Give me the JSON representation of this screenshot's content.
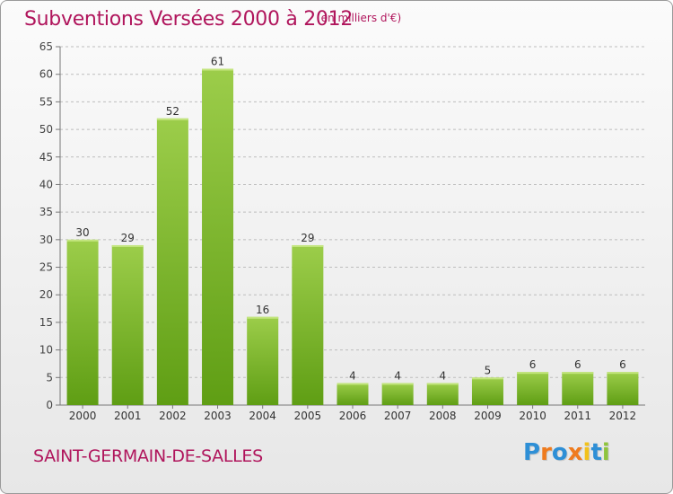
{
  "header": {
    "title": "Subventions Versées 2000 à 2012",
    "unit_note": "(en milliers d'€)"
  },
  "footer": {
    "commune": "SAINT-GERMAIN-DE-SALLES",
    "logo_text": "Proxiti",
    "logo_colors": [
      "#2e8fd6",
      "#ef7b1e",
      "#2e8fd6",
      "#ef7b1e",
      "#f2c21b",
      "#2e8fd6",
      "#8fc43d"
    ]
  },
  "colors": {
    "title": "#b0155c",
    "bar_top": "#9ccd4a",
    "bar_bottom": "#5f9e14",
    "grid": "#bdbdbd"
  },
  "chart_data": {
    "type": "bar",
    "title": "Subventions Versées 2000 à 2012",
    "subtitle": "(en milliers d'€)",
    "xlabel": "",
    "ylabel": "",
    "categories": [
      "2000",
      "2001",
      "2002",
      "2003",
      "2004",
      "2005",
      "2006",
      "2007",
      "2008",
      "2009",
      "2010",
      "2011",
      "2012"
    ],
    "values": [
      30,
      29,
      52,
      61,
      16,
      29,
      4,
      4,
      4,
      5,
      6,
      6,
      6
    ],
    "ylim": [
      0,
      65
    ],
    "yticks": [
      0,
      5,
      10,
      15,
      20,
      25,
      30,
      35,
      40,
      45,
      50,
      55,
      60,
      65
    ],
    "grid": true,
    "data_labels": true
  }
}
